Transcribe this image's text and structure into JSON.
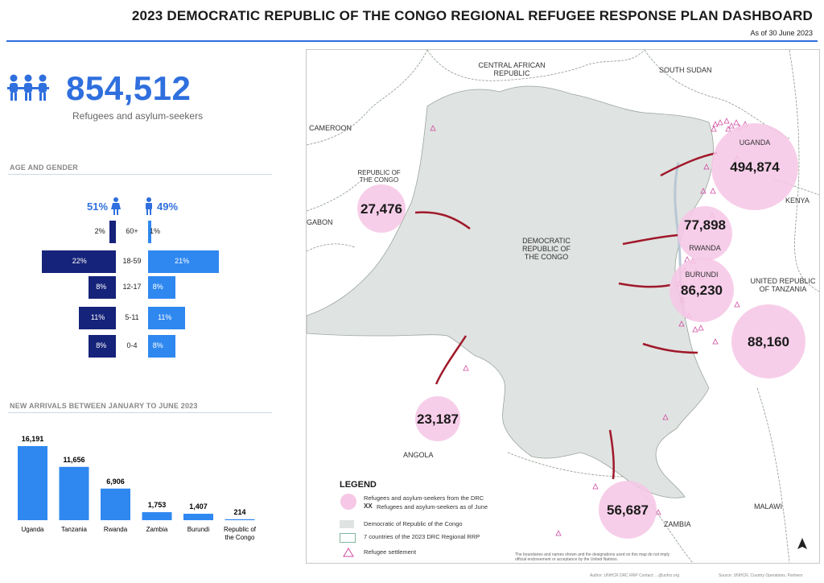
{
  "header": {
    "title": "2023 DEMOCRATIC REPUBLIC OF THE CONGO REGIONAL REFUGEE RESPONSE PLAN DASHBOARD",
    "as_of": "As of 30 June 2023"
  },
  "kpi": {
    "value": "854,512",
    "label": "Refugees and asylum-seekers",
    "icon": "people-group-icon",
    "color": "#2f6fde"
  },
  "age_gender": {
    "title": "AGE AND GENDER",
    "female_pct": "51%",
    "male_pct": "49%",
    "rows": [
      {
        "age": "60+",
        "female": 2,
        "female_label": "2%",
        "male": 1,
        "male_label": "1%"
      },
      {
        "age": "18-59",
        "female": 22,
        "female_label": "22%",
        "male": 21,
        "male_label": "21%"
      },
      {
        "age": "12-17",
        "female": 8,
        "female_label": "8%",
        "male": 8,
        "male_label": "8%"
      },
      {
        "age": "5-11",
        "female": 11,
        "female_label": "11%",
        "male": 11,
        "male_label": "11%"
      },
      {
        "age": "0-4",
        "female": 8,
        "female_label": "8%",
        "male": 8,
        "male_label": "8%"
      }
    ],
    "female_color": "#16237a",
    "male_color": "#2f88f0"
  },
  "new_arrivals": {
    "title": "NEW ARRIVALS BETWEEN JANUARY TO JUNE 2023"
  },
  "chart_data": {
    "type": "bar",
    "categories": [
      "Uganda",
      "Tanzania",
      "Rwanda",
      "Zambia",
      "Burundi",
      "Republic of the Congo"
    ],
    "values": [
      16191,
      11656,
      6906,
      1753,
      1407,
      214
    ],
    "value_labels": [
      "16,191",
      "11,656",
      "6,906",
      "1,753",
      "1,407",
      "214"
    ],
    "title": "NEW ARRIVALS BETWEEN JANUARY TO JUNE 2023",
    "xlabel": "",
    "ylabel": "",
    "ylim": [
      0,
      16191
    ],
    "grid": false,
    "color": "#2f88f0"
  },
  "map": {
    "country_labels": [
      {
        "id": "car",
        "text": "CENTRAL AFRICAN REPUBLIC"
      },
      {
        "id": "southsudan",
        "text": "SOUTH SUDAN"
      },
      {
        "id": "cameroon",
        "text": "CAMEROON"
      },
      {
        "id": "gabon",
        "text": "GABON"
      },
      {
        "id": "kenya",
        "text": "KENYA"
      },
      {
        "id": "drc",
        "text": "DEMOCRATIC REPUBLIC OF THE CONGO"
      },
      {
        "id": "angola",
        "text": "ANGOLA"
      },
      {
        "id": "zambia",
        "text": "ZAMBIA"
      },
      {
        "id": "malawi",
        "text": "MALAWI"
      },
      {
        "id": "tanzania",
        "text": "UNITED REPUBLIC OF TANZANIA"
      }
    ],
    "bubbles": [
      {
        "country": "UGANDA",
        "value": 494874,
        "label": "494,874"
      },
      {
        "country": "RWANDA",
        "value": 77898,
        "label": "77,898"
      },
      {
        "country": "BURUNDI",
        "value": 86230,
        "label": "86,230"
      },
      {
        "country": "",
        "value": 88160,
        "label": "88,160"
      },
      {
        "country": "",
        "value": 27476,
        "label": "27,476"
      },
      {
        "country": "",
        "value": 23187,
        "label": "23,187"
      },
      {
        "country": "",
        "value": 56687,
        "label": "56,687"
      }
    ],
    "republic_congo_label": "REPUBLIC OF THE CONGO",
    "bubble_color": "#f6c7e6",
    "arrow_color": "#a0182a",
    "drc_color": "#dfe3e1"
  },
  "legend": {
    "title": "LEGEND",
    "item1": "Refugees and asylum-seekers from the DRC",
    "item1_sub": "Refugees and asylum-seekers as of June",
    "item1_xx": "XX",
    "item2": "Democratic of Republic of the Congo",
    "item3": "7 countries of the 2023 DRC Regional RRP",
    "item4": "Refugee settlement"
  },
  "footer": {
    "disclaimer": "The boundaries and names shown and the designations used on this map do not imply official endorsement or acceptance by the United Nations.",
    "credit": "Author: UNHCR DRC RRP   Contact: ...@unhcr.org",
    "source": "Source: UNHCR, Country Operations, Partners"
  }
}
